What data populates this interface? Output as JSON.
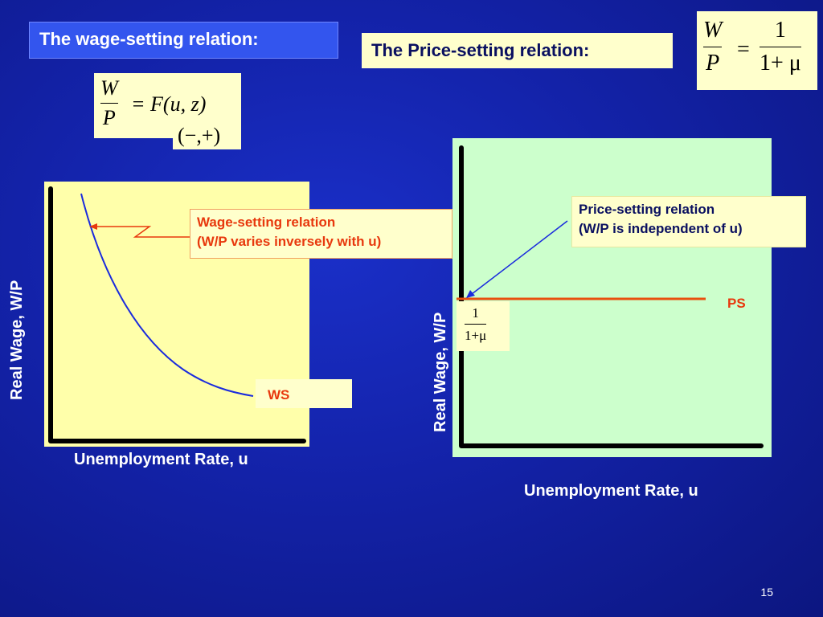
{
  "slide": {
    "wage_title": "The wage-setting relation:",
    "price_title": "The Price-setting relation:",
    "page_number": "15"
  },
  "formulas": {
    "wage": {
      "num": "W",
      "den": "P",
      "rhs": "= F(u, z)",
      "signs": "(−,+)"
    },
    "price": {
      "num": "W",
      "den": "P",
      "eq": "=",
      "rhs_num": "1",
      "rhs_den": "1+ μ"
    },
    "ps_level": {
      "num": "1",
      "den": "1+μ"
    }
  },
  "left_chart": {
    "xlabel": "Unemployment Rate, u",
    "ylabel": "Real Wage, W/P",
    "curve_label": "WS",
    "annotation_line1": "Wage-setting relation",
    "annotation_line2": "(W/P varies inversely with u)"
  },
  "right_chart": {
    "xlabel": "Unemployment Rate, u",
    "ylabel": "Real Wage, W/P",
    "curve_label": "PS",
    "annotation_line1": "Price-setting relation",
    "annotation_line2": "(W/P is independent of u)"
  },
  "colors": {
    "background": "#1322a8",
    "ws_curve": "#1a2bdd",
    "ps_curve": "#e8500e",
    "label_red": "#e8380d",
    "arrow_red": "#e8380d",
    "arrow_blue": "#1a2bdd"
  }
}
